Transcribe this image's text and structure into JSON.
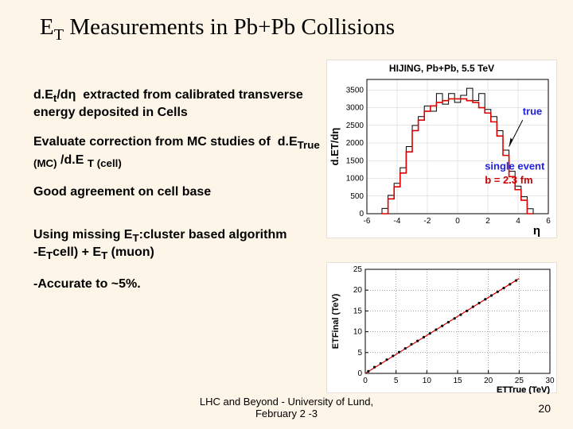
{
  "title_html": "E<sub>T</sub> Measurements in Pb+Pb Collisions",
  "text": {
    "p1_html": "d.E<sub>t</sub>/dη &nbsp;extracted from calibrated transverse energy deposited in Cells",
    "p2_html": "Evaluate correction from MC studies of &nbsp;d.E<sub>True (MC)</sub> /d.E <sub>T (cell)</sub>",
    "p3": "Good agreement on cell base",
    "p4_html": "Using missing E<sub>T</sub>:cluster based algorithm<br>-E<sub>T</sub>cell) + E<sub>T</sub> (muon)",
    "p5": "-Accurate to ~5%."
  },
  "footer": {
    "line1": "LHC and Beyond - University of Lund,",
    "line2": "February 2 -3",
    "page": "20"
  },
  "chart1": {
    "title": "HIJING, Pb+Pb, 5.5 TeV",
    "ylabel": "d.ET/dη",
    "xlabel": "η",
    "xlim": [
      -6,
      6
    ],
    "ylim": [
      0,
      3800
    ],
    "ytick_step": 500,
    "xtick_step": 2,
    "grid_color": "#cccccc",
    "frame_color": "#000000",
    "annotations": {
      "true_label": "true",
      "arrow_color": "#000000",
      "single_event": "single event",
      "b_label": "b = 2.3 fm"
    },
    "black_series": {
      "color": "#000000",
      "comment": "blocky histogram steps (eta, value)",
      "points": [
        [
          -5.8,
          0
        ],
        [
          -5.0,
          0
        ],
        [
          -5.0,
          150
        ],
        [
          -4.6,
          150
        ],
        [
          -4.6,
          520
        ],
        [
          -4.2,
          520
        ],
        [
          -4.2,
          860
        ],
        [
          -3.8,
          860
        ],
        [
          -3.8,
          1300
        ],
        [
          -3.4,
          1300
        ],
        [
          -3.4,
          1900
        ],
        [
          -3.0,
          1900
        ],
        [
          -3.0,
          2500
        ],
        [
          -2.6,
          2500
        ],
        [
          -2.6,
          2750
        ],
        [
          -2.2,
          2750
        ],
        [
          -2.2,
          3050
        ],
        [
          -1.8,
          3050
        ],
        [
          -1.8,
          2900
        ],
        [
          -1.4,
          2900
        ],
        [
          -1.4,
          3400
        ],
        [
          -1.0,
          3400
        ],
        [
          -1.0,
          3100
        ],
        [
          -0.6,
          3100
        ],
        [
          -0.6,
          3400
        ],
        [
          -0.2,
          3400
        ],
        [
          -0.2,
          3150
        ],
        [
          0.2,
          3150
        ],
        [
          0.2,
          3350
        ],
        [
          0.6,
          3350
        ],
        [
          0.6,
          3550
        ],
        [
          1.0,
          3550
        ],
        [
          1.0,
          3200
        ],
        [
          1.4,
          3200
        ],
        [
          1.4,
          3400
        ],
        [
          1.8,
          3400
        ],
        [
          1.8,
          2950
        ],
        [
          2.2,
          2950
        ],
        [
          2.2,
          2750
        ],
        [
          2.6,
          2750
        ],
        [
          2.6,
          2350
        ],
        [
          3.0,
          2350
        ],
        [
          3.0,
          1800
        ],
        [
          3.4,
          1800
        ],
        [
          3.4,
          1200
        ],
        [
          3.8,
          1200
        ],
        [
          3.8,
          780
        ],
        [
          4.2,
          780
        ],
        [
          4.2,
          480
        ],
        [
          4.6,
          480
        ],
        [
          4.6,
          140
        ],
        [
          5.0,
          140
        ],
        [
          5.0,
          0
        ],
        [
          5.8,
          0
        ]
      ]
    },
    "red_series": {
      "color": "#dd0000",
      "comment": "smoother red histogram, slightly lower than black",
      "points": [
        [
          -5.0,
          0
        ],
        [
          -4.6,
          0
        ],
        [
          -4.6,
          420
        ],
        [
          -4.2,
          420
        ],
        [
          -4.2,
          760
        ],
        [
          -3.8,
          760
        ],
        [
          -3.8,
          1150
        ],
        [
          -3.4,
          1150
        ],
        [
          -3.4,
          1750
        ],
        [
          -3.0,
          1750
        ],
        [
          -3.0,
          2350
        ],
        [
          -2.6,
          2350
        ],
        [
          -2.6,
          2650
        ],
        [
          -2.2,
          2650
        ],
        [
          -2.2,
          2900
        ],
        [
          -1.8,
          2900
        ],
        [
          -1.8,
          3050
        ],
        [
          -1.4,
          3050
        ],
        [
          -1.4,
          3150
        ],
        [
          -1.0,
          3150
        ],
        [
          -1.0,
          3200
        ],
        [
          -0.6,
          3200
        ],
        [
          -0.6,
          3250
        ],
        [
          0.6,
          3250
        ],
        [
          0.6,
          3200
        ],
        [
          1.0,
          3200
        ],
        [
          1.0,
          3150
        ],
        [
          1.4,
          3150
        ],
        [
          1.4,
          3000
        ],
        [
          1.8,
          3000
        ],
        [
          1.8,
          2850
        ],
        [
          2.2,
          2850
        ],
        [
          2.2,
          2600
        ],
        [
          2.6,
          2600
        ],
        [
          2.6,
          2200
        ],
        [
          3.0,
          2200
        ],
        [
          3.0,
          1650
        ],
        [
          3.4,
          1650
        ],
        [
          3.4,
          1050
        ],
        [
          3.8,
          1050
        ],
        [
          3.8,
          680
        ],
        [
          4.2,
          680
        ],
        [
          4.2,
          380
        ],
        [
          4.6,
          380
        ],
        [
          4.6,
          0
        ],
        [
          5.0,
          0
        ]
      ]
    }
  },
  "chart2": {
    "xlabel_html": "E<sub>T</sub>True (TeV)",
    "ylabel_html": "E<sub>T</sub>Final (TeV)",
    "xlim": [
      0,
      30
    ],
    "ylim": [
      0,
      25
    ],
    "xtick_step": 5,
    "ytick_step": 5,
    "grid_color": "#444444",
    "grid_dash": "1,2",
    "frame_color": "#000000",
    "line_color": "#dd0000",
    "points_color": "#000000",
    "points": [
      [
        0.5,
        0.5
      ],
      [
        1.5,
        1.5
      ],
      [
        2.5,
        2.4
      ],
      [
        3.5,
        3.3
      ],
      [
        4.5,
        4.2
      ],
      [
        5.5,
        5.1
      ],
      [
        6.5,
        6.0
      ],
      [
        7.5,
        7.0
      ],
      [
        8.5,
        7.8
      ],
      [
        9.5,
        8.7
      ],
      [
        10.5,
        9.6
      ],
      [
        11.5,
        10.5
      ],
      [
        12.5,
        11.4
      ],
      [
        13.5,
        12.3
      ],
      [
        14.5,
        13.2
      ],
      [
        15.5,
        14.1
      ],
      [
        16.5,
        15.0
      ],
      [
        17.5,
        16.0
      ],
      [
        18.5,
        16.9
      ],
      [
        19.5,
        17.8
      ],
      [
        20.5,
        18.7
      ],
      [
        21.5,
        19.6
      ],
      [
        22.5,
        20.5
      ],
      [
        23.5,
        21.4
      ],
      [
        24.5,
        22.3
      ]
    ],
    "line": [
      [
        0,
        0
      ],
      [
        25,
        22.8
      ]
    ]
  }
}
